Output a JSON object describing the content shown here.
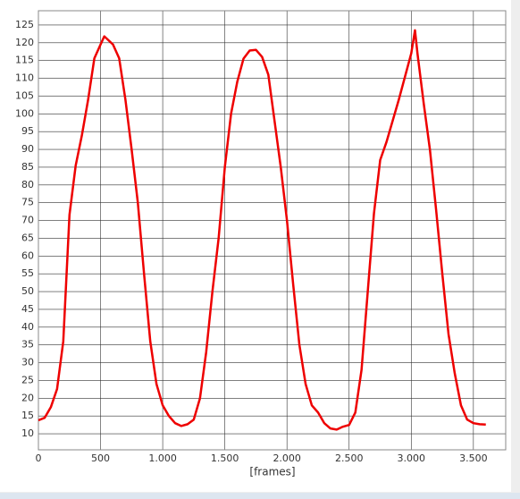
{
  "chart_data": {
    "type": "line",
    "x_label": "[frames]",
    "x": [
      0,
      50,
      100,
      150,
      200,
      250,
      300,
      350,
      400,
      450,
      500,
      530,
      600,
      650,
      700,
      750,
      800,
      850,
      900,
      950,
      1000,
      1050,
      1100,
      1150,
      1200,
      1250,
      1300,
      1350,
      1400,
      1450,
      1500,
      1550,
      1600,
      1650,
      1700,
      1750,
      1800,
      1850,
      1900,
      1950,
      2000,
      2050,
      2100,
      2150,
      2200,
      2250,
      2300,
      2350,
      2400,
      2450,
      2500,
      2550,
      2600,
      2650,
      2700,
      2750,
      2800,
      2900,
      3000,
      3030,
      3050,
      3100,
      3150,
      3200,
      3250,
      3300,
      3350,
      3400,
      3450,
      3500,
      3550,
      3600
    ],
    "series": [
      {
        "color": "#ee0000",
        "values": [
          13.8,
          14.5,
          17.5,
          22.6,
          36,
          71.6,
          85.5,
          94,
          104,
          115.6,
          119.5,
          121.8,
          119.5,
          115.6,
          104,
          90,
          75,
          55,
          36,
          24,
          18,
          15,
          13,
          12.2,
          12.7,
          14,
          20,
          33,
          50,
          65,
          85,
          100,
          109,
          115.5,
          117.8,
          118,
          116,
          111,
          98,
          85,
          70,
          52,
          35,
          24,
          18,
          16,
          13,
          11.5,
          11.2,
          12,
          12.5,
          16,
          28,
          50,
          72,
          87,
          92,
          104,
          117,
          123.5,
          117,
          103,
          90,
          73,
          55,
          38,
          27,
          18,
          14,
          13,
          12.7,
          12.6
        ]
      }
    ],
    "xlim": [
      0,
      3760
    ],
    "xticks": [
      0,
      500,
      {
        "value": 1000,
        "label": "1.000"
      },
      {
        "value": 1500,
        "label": "1.500"
      },
      {
        "value": 2000,
        "label": "2.000"
      },
      {
        "value": 2500,
        "label": "2.500"
      },
      {
        "value": 3000,
        "label": "3.000"
      },
      {
        "value": 3500,
        "label": "3.500"
      }
    ],
    "ylim": [
      5.5,
      129
    ],
    "yticks": [
      10,
      15,
      20,
      25,
      30,
      35,
      40,
      45,
      50,
      55,
      60,
      65,
      70,
      75,
      80,
      85,
      90,
      95,
      100,
      105,
      110,
      115,
      120,
      125
    ],
    "grid": true
  }
}
